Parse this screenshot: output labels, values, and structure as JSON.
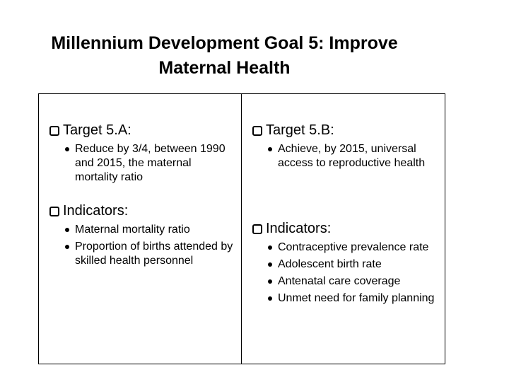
{
  "title": "Millennium Development Goal 5: Improve Maternal Health",
  "columns": [
    {
      "sections": [
        {
          "heading": "Target 5.A:",
          "items": [
            "Reduce by 3/4, between 1990 and 2015, the maternal mortality ratio"
          ]
        },
        {
          "heading": "Indicators:",
          "items": [
            "Maternal mortality ratio",
            "Proportion of births attended by skilled health personnel"
          ]
        }
      ]
    },
    {
      "sections": [
        {
          "heading": "Target 5.B:",
          "items": [
            "Achieve, by 2015, universal access to reproductive health"
          ]
        },
        {
          "heading": "Indicators:",
          "items": [
            "Contraceptive prevalence rate",
            "Adolescent birth rate",
            "Antenatal care coverage",
            "Unmet need for family planning"
          ]
        }
      ]
    }
  ]
}
